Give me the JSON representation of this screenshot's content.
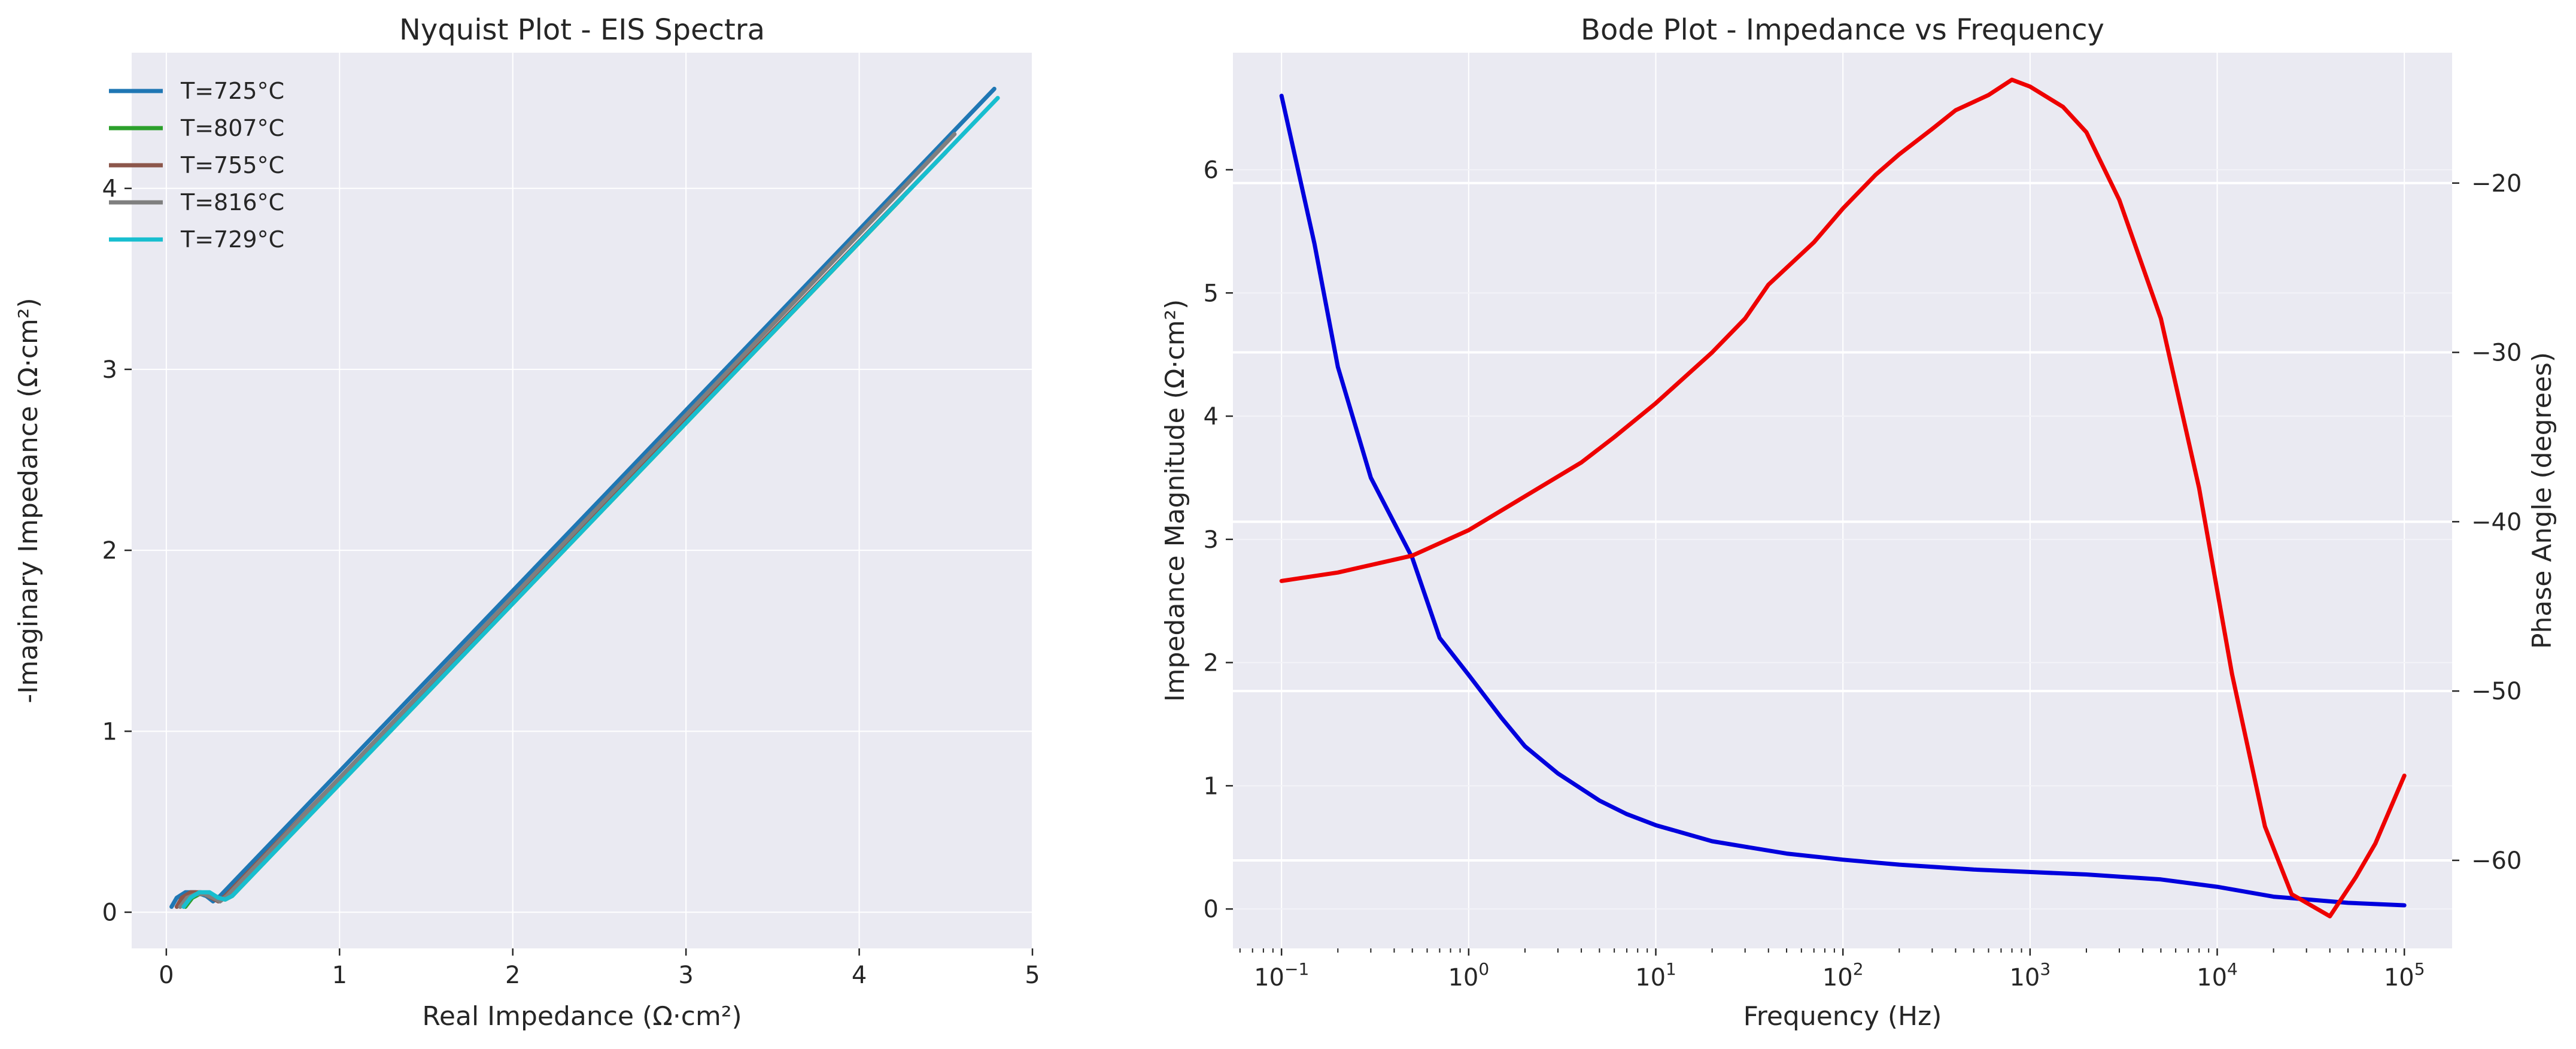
{
  "chart_data": [
    {
      "type": "line",
      "title": "Nyquist Plot - EIS Spectra",
      "xlabel": "Real Impedance (Ω·cm²)",
      "ylabel": "-Imaginary Impedance (Ω·cm²)",
      "xlim": [
        -0.2,
        5.0
      ],
      "ylim": [
        -0.2,
        4.75
      ],
      "xticks": [
        0,
        1,
        2,
        3,
        4,
        5
      ],
      "yticks": [
        0,
        1,
        2,
        3,
        4
      ],
      "grid": true,
      "legend_position": "top-left",
      "series": [
        {
          "name": "T=725°C",
          "color": "#1f77b4",
          "points": [
            [
              0.03,
              0.03
            ],
            [
              0.06,
              0.08
            ],
            [
              0.11,
              0.11
            ],
            [
              0.17,
              0.11
            ],
            [
              0.23,
              0.09
            ],
            [
              0.27,
              0.06
            ],
            [
              0.31,
              0.09
            ],
            [
              4.78,
              4.55
            ]
          ]
        },
        {
          "name": "T=807°C",
          "color": "#2ca02c",
          "points": [
            [
              0.11,
              0.03
            ],
            [
              0.15,
              0.08
            ],
            [
              0.19,
              0.1
            ],
            [
              0.24,
              0.1
            ],
            [
              0.29,
              0.08
            ],
            [
              0.34,
              0.07
            ],
            [
              0.38,
              0.09
            ],
            [
              4.25,
              3.95
            ]
          ]
        },
        {
          "name": "T=755°C",
          "color": "#8c564b",
          "points": [
            [
              0.06,
              0.03
            ],
            [
              0.09,
              0.08
            ],
            [
              0.14,
              0.11
            ],
            [
              0.2,
              0.11
            ],
            [
              0.26,
              0.08
            ],
            [
              0.3,
              0.06
            ],
            [
              0.34,
              0.09
            ],
            [
              4.5,
              4.2
            ]
          ]
        },
        {
          "name": "T=816°C",
          "color": "#7f7f7f",
          "points": [
            [
              0.08,
              0.03
            ],
            [
              0.12,
              0.08
            ],
            [
              0.17,
              0.1
            ],
            [
              0.22,
              0.1
            ],
            [
              0.27,
              0.08
            ],
            [
              0.31,
              0.06
            ],
            [
              0.35,
              0.09
            ],
            [
              4.55,
              4.3
            ]
          ]
        },
        {
          "name": "T=729°C",
          "color": "#17becf",
          "points": [
            [
              0.1,
              0.03
            ],
            [
              0.14,
              0.08
            ],
            [
              0.19,
              0.11
            ],
            [
              0.25,
              0.11
            ],
            [
              0.3,
              0.08
            ],
            [
              0.34,
              0.07
            ],
            [
              0.38,
              0.09
            ],
            [
              4.8,
              4.5
            ]
          ]
        }
      ]
    },
    {
      "type": "line",
      "title": "Bode Plot - Impedance vs Frequency",
      "xlabel": "Frequency (Hz)",
      "ylabel": "Impedance Magnitude (Ω·cm²)",
      "ylabel_right": "Phase Angle (degrees)",
      "x_scale": "log",
      "xlim": [
        0.055,
        180000
      ],
      "ylim": [
        -0.32,
        6.95
      ],
      "ylim_right": [
        -65.2,
        -12.3
      ],
      "xticks_exp": [
        -1,
        0,
        1,
        2,
        3,
        4,
        5
      ],
      "yticks": [
        0,
        1,
        2,
        3,
        4,
        5,
        6
      ],
      "yticks_right": [
        -20,
        -30,
        -40,
        -50,
        -60
      ],
      "grid": true,
      "series": [
        {
          "name": "",
          "axis": "left",
          "color": "#0000dd",
          "x": [
            0.1,
            0.15,
            0.2,
            0.3,
            0.5,
            0.7,
            1,
            1.5,
            2,
            3,
            5,
            7,
            10,
            20,
            50,
            100,
            200,
            500,
            1000,
            2000,
            5000,
            10000,
            20000,
            50000,
            100000
          ],
          "y": [
            6.6,
            5.4,
            4.4,
            3.5,
            2.85,
            2.2,
            1.9,
            1.55,
            1.32,
            1.1,
            0.88,
            0.77,
            0.68,
            0.55,
            0.45,
            0.4,
            0.36,
            0.32,
            0.3,
            0.28,
            0.24,
            0.18,
            0.1,
            0.05,
            0.03
          ]
        },
        {
          "name": "",
          "axis": "right",
          "color": "#ee0000",
          "x": [
            0.1,
            0.2,
            0.5,
            1,
            2,
            4,
            6,
            10,
            20,
            30,
            40,
            70,
            100,
            150,
            200,
            300,
            400,
            600,
            800,
            1000,
            1500,
            2000,
            3000,
            5000,
            8000,
            12000,
            18000,
            25000,
            40000,
            55000,
            70000,
            100000
          ],
          "y": [
            -43.5,
            -43,
            -42,
            -40.5,
            -38.5,
            -36.5,
            -35,
            -33,
            -30,
            -28,
            -26,
            -23.5,
            -21.5,
            -19.5,
            -18.3,
            -16.8,
            -15.7,
            -14.8,
            -13.9,
            -14.3,
            -15.5,
            -17,
            -21,
            -28,
            -38,
            -49,
            -58,
            -62,
            -63.3,
            -61,
            -59,
            -55
          ]
        }
      ]
    }
  ]
}
